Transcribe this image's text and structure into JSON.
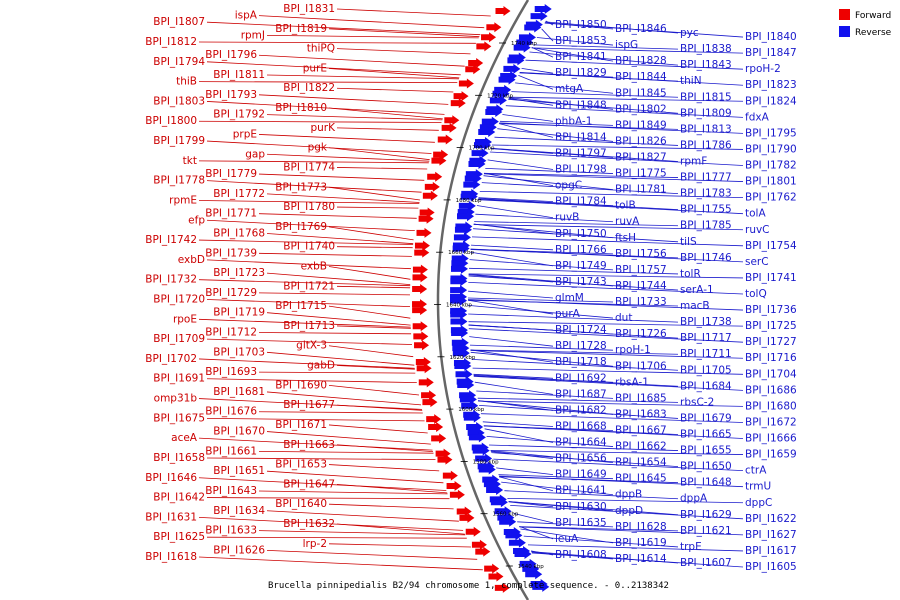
{
  "caption": "Brucella pinnipedialis B2/94 chromosome 1, complete sequence. - 0..2138342",
  "legend": {
    "forward": "Forward",
    "reverse": "Reverse",
    "forward_color": "#ee0000",
    "reverse_color": "#1111ee"
  },
  "scale_ticks": [
    "1740 kbp",
    "1720 kbp",
    "1700 kbp",
    "1680 kbp",
    "1660 kbp",
    "1640 kbp",
    "1620 kbp",
    "1600 kbp",
    "1580 kbp",
    "1560 kbp",
    "1540 kbp"
  ],
  "forward_labels": [
    "BPI_I1831",
    "ispA",
    "BPI_I1807",
    "BPI_I1819",
    "rpmJ",
    "BPI_I1812",
    "thiPQ",
    "BPI_I1796",
    "BPI_I1794",
    "purE",
    "BPI_I1811",
    "thiB",
    "BPI_I1822",
    "BPI_I1793",
    "BPI_I1803",
    "BPI_I1810",
    "BPI_I1792",
    "BPI_I1800",
    "purK",
    "prpE",
    "BPI_I1799",
    "pgk",
    "gap",
    "tkt",
    "BPI_I1774",
    "BPI_I1779",
    "BPI_I1778",
    "BPI_I1773",
    "BPI_I1772",
    "rpmE",
    "BPI_I1780",
    "BPI_I1771",
    "efp",
    "BPI_I1769",
    "BPI_I1768",
    "BPI_I1742",
    "BPI_I1740",
    "BPI_I1739",
    "exbD",
    "exbB",
    "BPI_I1723",
    "BPI_I1732",
    "BPI_I1721",
    "BPI_I1729",
    "BPI_I1720",
    "BPI_I1715",
    "BPI_I1719",
    "rpoE",
    "BPI_I1713",
    "BPI_I1712",
    "BPI_I1709",
    "gltX-3",
    "BPI_I1703",
    "BPI_I1702",
    "gabD",
    "BPI_I1693",
    "BPI_I1691",
    "BPI_I1690",
    "BPI_I1681",
    "omp31b",
    "BPI_I1677",
    "BPI_I1676",
    "BPI_I1675",
    "BPI_I1671",
    "BPI_I1670",
    "aceA",
    "BPI_I1663",
    "BPI_I1661",
    "BPI_I1658",
    "BPI_I1653",
    "BPI_I1651",
    "BPI_I1646",
    "BPI_I1647",
    "BPI_I1643",
    "BPI_I1642",
    "BPI_I1640",
    "BPI_I1634",
    "BPI_I1631",
    "BPI_I1632",
    "BPI_I1633",
    "BPI_I1625",
    "lrp-2",
    "BPI_I1626",
    "BPI_I1618"
  ],
  "reverse_labels": [
    "BPI_I1850",
    "BPI_I1846",
    "pyc",
    "BPI_I1840",
    "BPI_I1853",
    "ispG",
    "BPI_I1838",
    "BPI_I1847",
    "BPI_I1841",
    "BPI_I1828",
    "BPI_I1843",
    "rpoH-2",
    "BPI_I1829",
    "BPI_I1844",
    "thiN",
    "BPI_I1823",
    "mtgA",
    "BPI_I1845",
    "BPI_I1815",
    "BPI_I1824",
    "BPI_I1848",
    "BPI_I1802",
    "BPI_I1809",
    "fdxA",
    "phbA-1",
    "BPI_I1849",
    "BPI_I1813",
    "BPI_I1795",
    "BPI_I1814",
    "BPI_I1826",
    "BPI_I1786",
    "BPI_I1790",
    "BPI_I1797",
    "BPI_I1827",
    "rpmF",
    "BPI_I1782",
    "BPI_I1798",
    "BPI_I1775",
    "BPI_I1777",
    "BPI_I1801",
    "opgC",
    "BPI_I1781",
    "BPI_I1783",
    "BPI_I1762",
    "BPI_I1784",
    "tolB",
    "BPI_I1755",
    "tolA",
    "ruvB",
    "ruvA",
    "BPI_I1785",
    "ruvC",
    "BPI_I1750",
    "ftsH",
    "tilS",
    "BPI_I1754",
    "BPI_I1766",
    "BPI_I1756",
    "BPI_I1746",
    "serC",
    "BPI_I1749",
    "BPI_I1757",
    "tolR",
    "BPI_I1741",
    "BPI_I1743",
    "BPI_I1744",
    "serA-1",
    "tolQ",
    "glmM",
    "BPI_I1733",
    "macB",
    "BPI_I1736",
    "purA",
    "dut",
    "BPI_I1738",
    "BPI_I1725",
    "BPI_I1724",
    "BPI_I1726",
    "BPI_I1717",
    "BPI_I1727",
    "BPI_I1728",
    "rpoH-1",
    "BPI_I1711",
    "BPI_I1716",
    "BPI_I1718",
    "BPI_I1706",
    "BPI_I1705",
    "BPI_I1704",
    "BPI_I1692",
    "rbsA-1",
    "BPI_I1684",
    "BPI_I1686",
    "BPI_I1687",
    "BPI_I1685",
    "rbsC-2",
    "BPI_I1680",
    "BPI_I1682",
    "BPI_I1683",
    "BPI_I1679",
    "BPI_I1672",
    "BPI_I1668",
    "BPI_I1667",
    "BPI_I1665",
    "BPI_I1666",
    "BPI_I1664",
    "BPI_I1662",
    "BPI_I1655",
    "BPI_I1659",
    "BPI_I1656",
    "BPI_I1654",
    "BPI_I1650",
    "ctrA",
    "BPI_I1649",
    "BPI_I1645",
    "BPI_I1648",
    "trmU",
    "BPI_I1641",
    "dppB",
    "dppA",
    "dppC",
    "BPI_I1630",
    "dppD",
    "BPI_I1629",
    "BPI_I1622",
    "BPI_I1635",
    "BPI_I1628",
    "BPI_I1621",
    "BPI_I1627",
    "leuA",
    "BPI_I1619",
    "trpE",
    "BPI_I1617",
    "BPI_I1608",
    "BPI_I1614",
    "BPI_I1607",
    "BPI_I1605"
  ]
}
